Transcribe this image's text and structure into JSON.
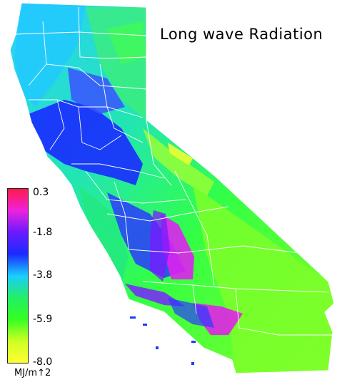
{
  "map": {
    "title": "Long wave Radiation",
    "region": "California",
    "boundary_color": "#ffffff"
  },
  "legend": {
    "ticks": [
      "0.3",
      "-1.8",
      "-3.8",
      "-5.9",
      "-8.0"
    ],
    "units": "MJ/m↑2",
    "colors": [
      "#ff1a4a",
      "#ee22dd",
      "#6a1aff",
      "#1a2aff",
      "#1acdff",
      "#22ee66",
      "#33ff22",
      "#ccff22",
      "#ffff33"
    ]
  }
}
